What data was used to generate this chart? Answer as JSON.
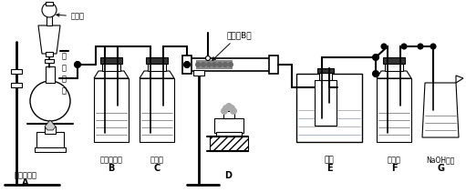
{
  "bg_color": "#ffffff",
  "labels": {
    "nong_hcl": "浓盐酸",
    "mno2": "二\n氧\n化\n锰",
    "bao_shui": "饱和食盐水",
    "liu_suan": "浓硫酸",
    "peng_fen": "硼粉（B）",
    "bing_shui": "冰水",
    "nong_liu": "浓硫酸",
    "naoh": "NaOH溶液",
    "A": "A",
    "B": "B",
    "C": "C",
    "D": "D",
    "E": "E",
    "F": "F",
    "G": "G"
  }
}
